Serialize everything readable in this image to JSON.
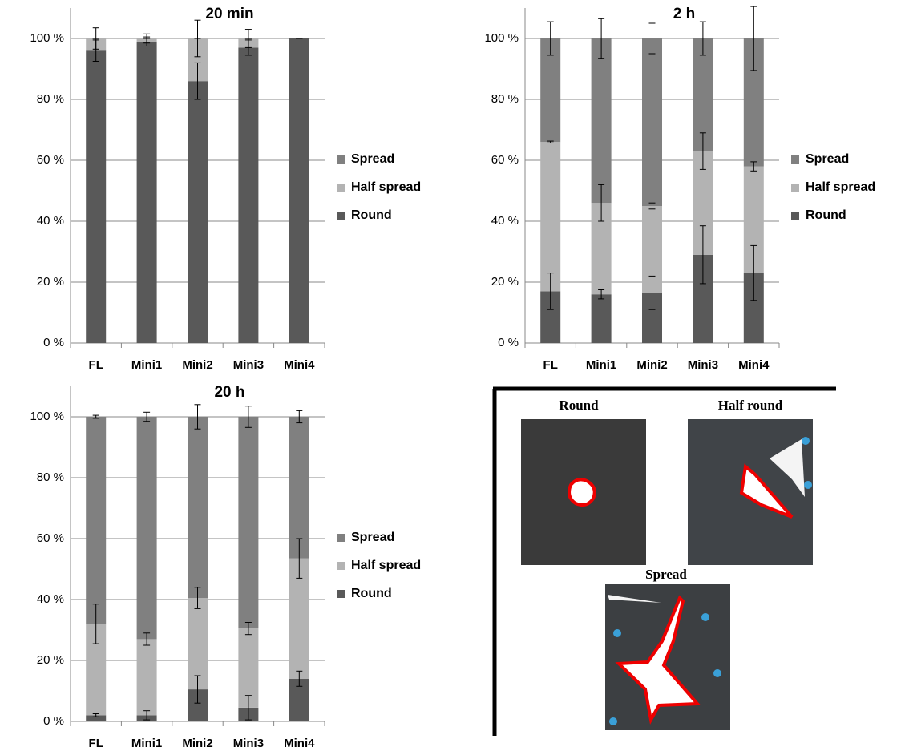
{
  "chart_data": [
    {
      "type": "bar",
      "stacked": true,
      "title": "20 min",
      "categories": [
        "FL",
        "Mini1",
        "Mini2",
        "Mini3",
        "Mini4"
      ],
      "series": [
        {
          "name": "Round",
          "color": "#595959",
          "values": [
            96,
            99,
            86,
            97,
            100
          ],
          "errors": [
            3.5,
            1.5,
            6,
            2.5,
            0
          ]
        },
        {
          "name": "Half spread",
          "color": "#b3b3b3",
          "values": [
            4,
            1,
            14,
            3,
            0
          ],
          "errors": [
            3.5,
            1.5,
            6,
            3,
            0
          ]
        },
        {
          "name": "Spread",
          "color": "#808080",
          "values": [
            0,
            0,
            0,
            0,
            0
          ],
          "errors": [
            0,
            0,
            0,
            0,
            0
          ]
        }
      ],
      "ylim": [
        0,
        110
      ],
      "yticks": [
        {
          "value": 0,
          "label": "0 %"
        },
        {
          "value": 20,
          "label": "20 %"
        },
        {
          "value": 40,
          "label": "40 %"
        },
        {
          "value": 60,
          "label": "60 %"
        },
        {
          "value": 80,
          "label": "80 %"
        },
        {
          "value": 100,
          "label": "100 %"
        }
      ],
      "grid": true,
      "legend": "right"
    },
    {
      "type": "bar",
      "stacked": true,
      "title": "2 h",
      "categories": [
        "FL",
        "Mini1",
        "Mini2",
        "Mini3",
        "Mini4"
      ],
      "series": [
        {
          "name": "Round",
          "color": "#595959",
          "values": [
            17,
            16,
            16.5,
            29,
            23
          ],
          "errors": [
            6,
            1.5,
            5.5,
            9.5,
            9
          ]
        },
        {
          "name": "Half spread",
          "color": "#b3b3b3",
          "values": [
            49,
            30,
            28.5,
            34,
            35
          ],
          "errors": [
            0.3,
            6,
            1,
            6,
            1.5
          ]
        },
        {
          "name": "Spread",
          "color": "#808080",
          "values": [
            34,
            54,
            55,
            37,
            42
          ],
          "errors": [
            5.5,
            6.5,
            5,
            5.5,
            10.5
          ]
        }
      ],
      "ylim": [
        0,
        110
      ],
      "yticks": [
        {
          "value": 0,
          "label": "0 %"
        },
        {
          "value": 20,
          "label": "20 %"
        },
        {
          "value": 40,
          "label": "40 %"
        },
        {
          "value": 60,
          "label": "60 %"
        },
        {
          "value": 80,
          "label": "80 %"
        },
        {
          "value": 100,
          "label": "100 %"
        }
      ],
      "grid": true,
      "legend": "right"
    },
    {
      "type": "bar",
      "stacked": true,
      "title": "20 h",
      "categories": [
        "FL",
        "Mini1",
        "Mini2",
        "Mini3",
        "Mini4"
      ],
      "series": [
        {
          "name": "Round",
          "color": "#595959",
          "values": [
            2,
            2,
            10.5,
            4.5,
            14
          ],
          "errors": [
            0.5,
            1.5,
            4.5,
            4,
            2.5
          ]
        },
        {
          "name": "Half spread",
          "color": "#b3b3b3",
          "values": [
            30,
            25,
            30,
            26,
            39.5
          ],
          "errors": [
            6.5,
            2,
            3.5,
            2,
            6.5
          ]
        },
        {
          "name": "Spread",
          "color": "#808080",
          "values": [
            68,
            73,
            59.5,
            69.5,
            46.5
          ],
          "errors": [
            0.5,
            1.5,
            4,
            3.5,
            2
          ]
        }
      ],
      "ylim": [
        0,
        110
      ],
      "yticks": [
        {
          "value": 0,
          "label": "0 %"
        },
        {
          "value": 20,
          "label": "20 %"
        },
        {
          "value": 40,
          "label": "40 %"
        },
        {
          "value": 60,
          "label": "60 %"
        },
        {
          "value": 80,
          "label": "80 %"
        },
        {
          "value": 100,
          "label": "100 %"
        }
      ],
      "grid": true,
      "legend": "right"
    }
  ],
  "image_panel": {
    "labels": [
      "Round",
      "Half round",
      "Spread"
    ]
  }
}
